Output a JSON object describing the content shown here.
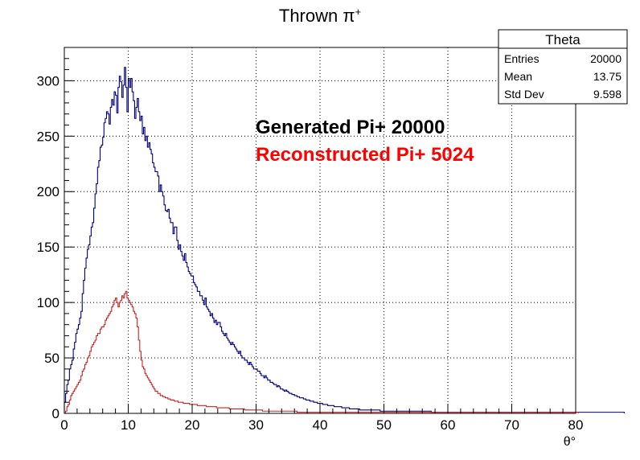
{
  "chart_data": {
    "type": "histogram",
    "title_main": "Thrown π",
    "title_sup": "+",
    "xlabel": "θ°",
    "ylabel": "",
    "xlim": [
      0,
      80
    ],
    "ylim": [
      0,
      330
    ],
    "x_ticks": [
      0,
      10,
      20,
      30,
      40,
      50,
      60,
      70,
      80
    ],
    "y_ticks": [
      0,
      50,
      100,
      150,
      200,
      250,
      300
    ],
    "grid": true,
    "bin_width": 0.2,
    "annotations": [
      {
        "text": "Generated Pi+ 20000",
        "color": "#000000"
      },
      {
        "text": "Reconstructed Pi+ 5024",
        "color": "#ff0000"
      }
    ],
    "stats_box": {
      "title": "Theta",
      "rows": [
        {
          "label": "Entries",
          "value": "20000"
        },
        {
          "label": "Mean",
          "value": "13.75"
        },
        {
          "label": "Std Dev",
          "value": "9.598"
        }
      ]
    },
    "series": [
      {
        "color": "#000080",
        "values": [
          10,
          18,
          26,
          30,
          40,
          44,
          48,
          58,
          64,
          72,
          76,
          80,
          86,
          92,
          108,
          120,
          131,
          140,
          148,
          152,
          160,
          168,
          172,
          185,
          198,
          207,
          222,
          228,
          240,
          242,
          249,
          262,
          266,
          272,
          270,
          261,
          276,
          283,
          278,
          290,
          287,
          271,
          294,
          304,
          299,
          285,
          296,
          312,
          294,
          272,
          302,
          294,
          302,
          290,
          282,
          266,
          276,
          284,
          272,
          264,
          268,
          252,
          258,
          246,
          250,
          240,
          244,
          238,
          234,
          226,
          222,
          218,
          218,
          214,
          200,
          206,
          200,
          196,
          188,
          183,
          182,
          184,
          176,
          172,
          172,
          162,
          168,
          168,
          156,
          148,
          152,
          146,
          142,
          138,
          144,
          136,
          132,
          128,
          126,
          124,
          124,
          118,
          116,
          114,
          110,
          110,
          106,
          106,
          102,
          98,
          104,
          96,
          94,
          92,
          88,
          90,
          86,
          82,
          84,
          80,
          82,
          82,
          78,
          74,
          72,
          70,
          72,
          68,
          66,
          64,
          62,
          64,
          62,
          60,
          58,
          56,
          54,
          56,
          52,
          50,
          50,
          48,
          48,
          46,
          44,
          46,
          44,
          42,
          40,
          40,
          40,
          38,
          38,
          36,
          34,
          34,
          32,
          34,
          32,
          30,
          30,
          28,
          28,
          27,
          26,
          26,
          24,
          25,
          24,
          22,
          22,
          21,
          20,
          21,
          20,
          19,
          18,
          18,
          17,
          17,
          16,
          16,
          15,
          15,
          14,
          14,
          14,
          13,
          13,
          12,
          12,
          12,
          11,
          11,
          11,
          10,
          10,
          10,
          9,
          9,
          9,
          9,
          8,
          8,
          8,
          8,
          7,
          7,
          7,
          7,
          7,
          6,
          6,
          6,
          6,
          6,
          6,
          5,
          5,
          5,
          5,
          5,
          5,
          4,
          4,
          4,
          4,
          4,
          4,
          4,
          4,
          3,
          3,
          3,
          3,
          3,
          3,
          3,
          3,
          3,
          3,
          3,
          3,
          3,
          3,
          3,
          3,
          2,
          2,
          2,
          2,
          2,
          2,
          2,
          2,
          2,
          2,
          2,
          2,
          2,
          2,
          2,
          2,
          2,
          2,
          2,
          2,
          2,
          2,
          2,
          2,
          2,
          2,
          2,
          2,
          2,
          2,
          2,
          2,
          2,
          2,
          2,
          2,
          2,
          2,
          2,
          2,
          1,
          1,
          1,
          1,
          1,
          1,
          1,
          1,
          1,
          1,
          1,
          1,
          1,
          1,
          1,
          1,
          1,
          1,
          1,
          1,
          1,
          1,
          1,
          1,
          1,
          1,
          1,
          1,
          1,
          1,
          1,
          1,
          1,
          1,
          1,
          1,
          1,
          1,
          1,
          1,
          1,
          1,
          1,
          1,
          1,
          1,
          1,
          1,
          1,
          1,
          1,
          1,
          1,
          1,
          1,
          1,
          1,
          1,
          1,
          1,
          1,
          1,
          1,
          1,
          1,
          1,
          1,
          1,
          1,
          1,
          1,
          1,
          1,
          1,
          1,
          1,
          1,
          1,
          1,
          1,
          1,
          1,
          1,
          1,
          1,
          1,
          1,
          1,
          1,
          1,
          1,
          1,
          1,
          1,
          1,
          1,
          1,
          1,
          1,
          1,
          1,
          1,
          1,
          1,
          1,
          1,
          1,
          1,
          1,
          1,
          1,
          1,
          1,
          1,
          1,
          1,
          1,
          1,
          1,
          1,
          1,
          1,
          1,
          1,
          1,
          1,
          1,
          1,
          1,
          1,
          1,
          1,
          1,
          1,
          1,
          1,
          1,
          1,
          1,
          1,
          1,
          1,
          1,
          1,
          1,
          1,
          1,
          1,
          1,
          1,
          1
        ]
      },
      {
        "color": "#cc2222",
        "values": [
          0,
          2,
          6,
          8,
          12,
          16,
          18,
          20,
          22,
          24,
          26,
          28,
          30,
          34,
          38,
          40,
          44,
          46,
          50,
          52,
          56,
          60,
          62,
          64,
          66,
          70,
          72,
          72,
          76,
          78,
          78,
          80,
          84,
          86,
          88,
          90,
          92,
          96,
          98,
          102,
          104,
          100,
          96,
          100,
          102,
          106,
          104,
          108,
          110,
          104,
          102,
          100,
          98,
          96,
          92,
          90,
          86,
          78,
          66,
          56,
          48,
          42,
          40,
          36,
          34,
          32,
          30,
          28,
          26,
          24,
          22,
          20,
          20,
          18,
          18,
          16,
          16,
          15,
          15,
          14,
          14,
          13,
          13,
          12,
          12,
          12,
          11,
          11,
          11,
          10,
          10,
          10,
          10,
          9,
          9,
          9,
          9,
          9,
          8,
          8,
          8,
          8,
          8,
          8,
          7,
          7,
          7,
          7,
          7,
          7,
          7,
          6,
          6,
          6,
          6,
          6,
          6,
          6,
          6,
          5,
          5,
          5,
          5,
          5,
          5,
          5,
          5,
          5,
          5,
          4,
          4,
          4,
          4,
          4,
          4,
          4,
          4,
          4,
          4,
          4,
          4,
          3,
          3,
          3,
          3,
          3,
          3,
          3,
          3,
          3,
          3,
          3,
          3,
          3,
          3,
          2,
          2,
          2,
          2,
          2,
          2,
          2,
          2,
          2,
          2,
          2,
          2,
          2,
          2,
          2,
          2,
          2,
          2,
          2,
          2,
          2,
          2,
          2,
          2,
          2,
          2,
          2,
          1,
          1,
          1,
          1,
          1,
          1,
          1,
          1,
          1,
          1,
          1,
          1,
          1,
          1,
          1,
          1,
          1,
          1,
          1,
          1,
          1,
          1,
          1,
          1,
          1,
          1,
          1,
          1,
          1,
          1,
          1,
          1,
          1,
          1,
          1,
          1,
          1,
          1,
          1,
          1,
          1,
          1,
          1,
          1,
          1,
          1,
          1,
          1,
          1,
          1,
          1,
          1,
          1,
          1,
          1,
          1,
          1,
          1,
          1,
          1,
          1,
          1,
          1,
          1,
          1,
          1,
          1,
          1,
          1,
          1,
          1,
          1,
          1,
          1,
          1,
          1,
          1,
          1,
          1,
          1,
          1,
          1,
          1,
          1,
          1,
          1,
          1,
          1,
          1,
          1,
          1,
          1,
          1,
          1,
          1,
          1,
          1,
          1,
          1,
          1,
          1,
          1,
          1,
          1,
          1,
          1,
          1,
          1,
          1,
          1,
          1,
          1,
          1,
          1,
          1,
          1,
          1,
          1,
          1,
          1,
          1,
          1,
          1,
          1,
          1,
          1,
          1,
          1,
          1,
          1,
          1,
          1,
          1,
          1,
          1,
          1,
          1,
          1,
          1,
          1,
          1,
          1,
          1,
          1,
          1,
          1,
          1,
          1,
          1,
          1,
          1,
          1,
          1,
          1,
          1,
          1,
          1,
          1,
          1,
          1,
          1,
          1,
          1,
          1,
          1,
          1,
          1,
          1,
          1,
          1,
          1,
          1,
          1,
          1,
          1,
          1,
          1,
          1,
          1,
          1,
          1,
          1,
          1,
          1,
          1,
          1,
          1,
          1,
          1,
          1,
          1,
          1,
          1,
          1,
          1,
          1,
          1,
          1,
          1,
          1,
          1,
          1,
          1,
          1,
          1,
          1,
          1,
          1,
          1,
          1,
          1,
          1,
          1,
          1,
          1,
          1,
          1,
          1,
          1,
          1
        ]
      }
    ]
  }
}
